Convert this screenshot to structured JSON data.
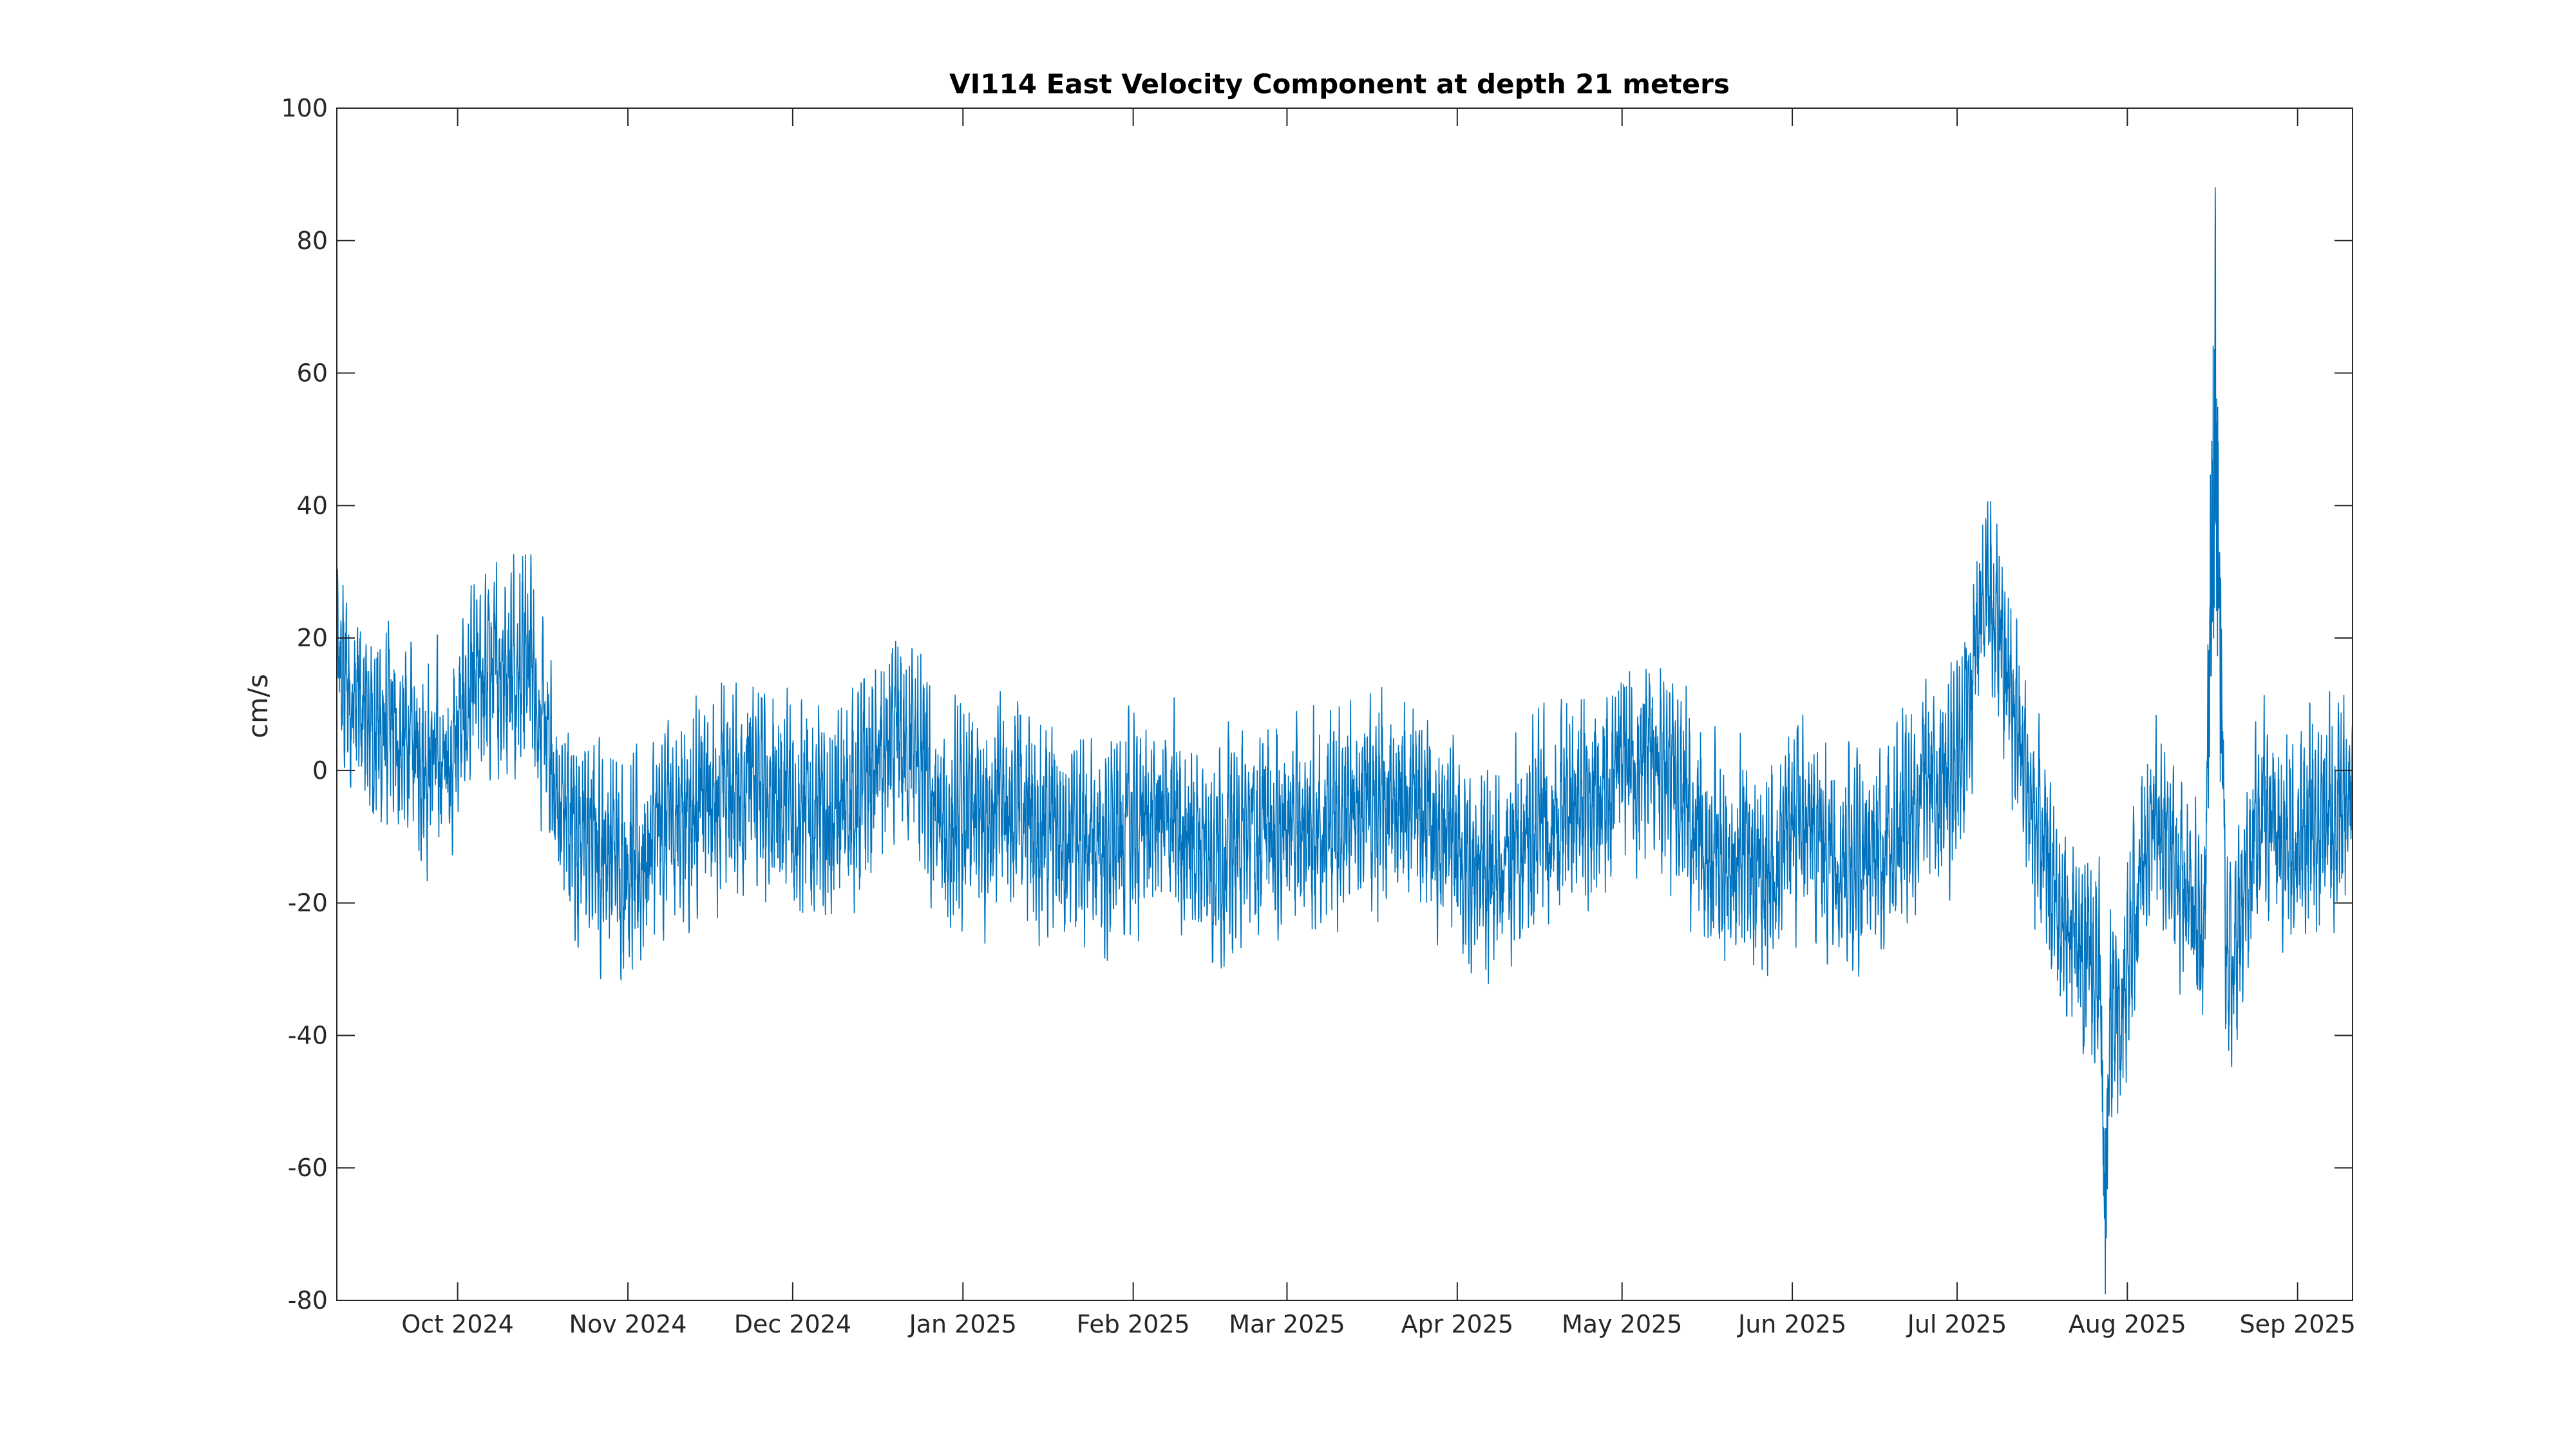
{
  "chart_data": {
    "type": "line",
    "title": "VI114 East Velocity Component at depth 21 meters",
    "xlabel": "",
    "ylabel": "cm/s",
    "ylim": [
      -80,
      100
    ],
    "xlim": [
      "2024-09-09",
      "2025-09-11"
    ],
    "grid": false,
    "legend": "none",
    "colors": {
      "series": "#0072BD",
      "axes": "#262626",
      "background": "#ffffff"
    },
    "x_ticks": [
      {
        "date": "2024-10-01",
        "label": "Oct 2024"
      },
      {
        "date": "2024-11-01",
        "label": "Nov 2024"
      },
      {
        "date": "2024-12-01",
        "label": "Dec 2024"
      },
      {
        "date": "2025-01-01",
        "label": "Jan 2025"
      },
      {
        "date": "2025-02-01",
        "label": "Feb 2025"
      },
      {
        "date": "2025-03-01",
        "label": "Mar 2025"
      },
      {
        "date": "2025-04-01",
        "label": "Apr 2025"
      },
      {
        "date": "2025-05-01",
        "label": "May 2025"
      },
      {
        "date": "2025-06-01",
        "label": "Jun 2025"
      },
      {
        "date": "2025-07-01",
        "label": "Jul 2025"
      },
      {
        "date": "2025-08-01",
        "label": "Aug 2025"
      },
      {
        "date": "2025-09-01",
        "label": "Sep 2025"
      }
    ],
    "y_ticks": [
      {
        "value": 100,
        "label": "100"
      },
      {
        "value": 80,
        "label": "80"
      },
      {
        "value": 60,
        "label": "60"
      },
      {
        "value": 40,
        "label": "40"
      },
      {
        "value": 20,
        "label": "20"
      },
      {
        "value": 0,
        "label": "0"
      },
      {
        "value": -20,
        "label": "-20"
      },
      {
        "value": -40,
        "label": "-40"
      },
      {
        "value": -60,
        "label": "-60"
      },
      {
        "value": -80,
        "label": "-80"
      }
    ],
    "series": [
      {
        "x": [
          "2024-09-09",
          "2024-09-14",
          "2024-09-19",
          "2024-09-24",
          "2024-09-29",
          "2024-10-04",
          "2024-10-09",
          "2024-10-14",
          "2024-10-19",
          "2024-10-24",
          "2024-10-29",
          "2024-11-03",
          "2024-11-08",
          "2024-11-13",
          "2024-11-18",
          "2024-11-23",
          "2024-11-28",
          "2024-12-03",
          "2024-12-08",
          "2024-12-13",
          "2024-12-18",
          "2024-12-23",
          "2024-12-28",
          "2025-01-02",
          "2025-01-07",
          "2025-01-12",
          "2025-01-17",
          "2025-01-22",
          "2025-01-27",
          "2025-02-01",
          "2025-02-06",
          "2025-02-11",
          "2025-02-16",
          "2025-02-21",
          "2025-02-26",
          "2025-03-03",
          "2025-03-08",
          "2025-03-13",
          "2025-03-18",
          "2025-03-23",
          "2025-03-28",
          "2025-04-02",
          "2025-04-07",
          "2025-04-12",
          "2025-04-17",
          "2025-04-22",
          "2025-04-27",
          "2025-05-02",
          "2025-05-07",
          "2025-05-12",
          "2025-05-17",
          "2025-05-22",
          "2025-05-27",
          "2025-06-01",
          "2025-06-06",
          "2025-06-11",
          "2025-06-16",
          "2025-06-21",
          "2025-06-26",
          "2025-07-01",
          "2025-07-06",
          "2025-07-11",
          "2025-07-16",
          "2025-07-21",
          "2025-07-26",
          "2025-07-31",
          "2025-08-05",
          "2025-08-10",
          "2025-08-15",
          "2025-08-20",
          "2025-08-25",
          "2025-08-30",
          "2025-09-04",
          "2025-09-11"
        ],
        "y": [
          15,
          8,
          5,
          3,
          1,
          12,
          16,
          18,
          -5,
          -10,
          -12,
          -15,
          -8,
          -5,
          -3,
          -2,
          -4,
          -6,
          -8,
          -3,
          2,
          4,
          -10,
          -8,
          -5,
          -6,
          -9,
          -10,
          -12,
          -8,
          -7,
          -10,
          -12,
          -10,
          -8,
          -9,
          -7,
          -5,
          -6,
          -4,
          -8,
          -14,
          -15,
          -12,
          -8,
          -6,
          -2,
          2,
          0,
          -4,
          -12,
          -14,
          -16,
          -8,
          -10,
          -12,
          -13,
          -6,
          -2,
          -1,
          30,
          10,
          -12,
          -25,
          -30,
          -35,
          -8,
          -15,
          -25,
          -28,
          -5,
          -12,
          -8,
          -6
        ],
        "min": {
          "x": "2025-07-28",
          "y": -79
        },
        "max": {
          "x": "2025-08-17",
          "y": 88
        }
      }
    ]
  }
}
